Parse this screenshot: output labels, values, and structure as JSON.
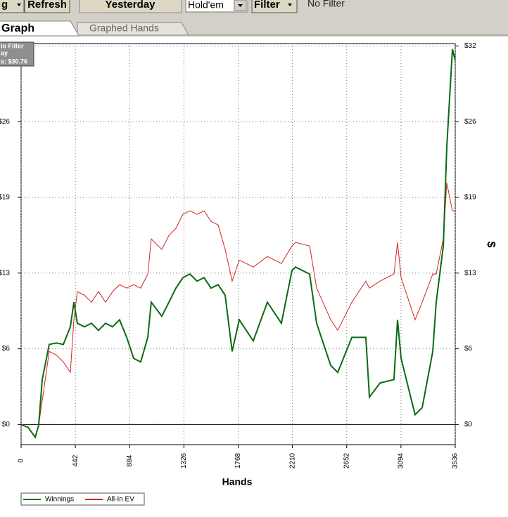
{
  "toolbar": {
    "items": [
      "g",
      "Refresh",
      "Yesterday",
      "Hold'em",
      "Filter",
      "No Filter"
    ]
  },
  "tabs": [
    "Graph",
    "Graphed Hands"
  ],
  "chart_data": {
    "type": "line",
    "annotations": [
      "lo Filter",
      "ay",
      "s: $30.76"
    ],
    "x_label": "Hands",
    "y_label": "$",
    "x": [
      0,
      57,
      115,
      143,
      172,
      229,
      287,
      344,
      401,
      430,
      458,
      516,
      573,
      630,
      688,
      745,
      802,
      860,
      917,
      974,
      1032,
      1060,
      1146,
      1204,
      1261,
      1318,
      1375,
      1433,
      1490,
      1547,
      1605,
      1662,
      1719,
      1777,
      1891,
      2006,
      2120,
      2206,
      2235,
      2350,
      2407,
      2522,
      2579,
      2694,
      2808,
      2837,
      2923,
      3037,
      3066,
      3095,
      3209,
      3267,
      3353,
      3381,
      3439,
      3467,
      3513,
      3536
    ],
    "series": [
      {
        "name": "Winnings",
        "color": "#0b6a12",
        "values": [
          0,
          -0.24,
          -1.07,
          -0.06,
          3.8,
          6.77,
          6.89,
          6.77,
          8.26,
          10.34,
          8.56,
          8.26,
          8.56,
          7.96,
          8.56,
          8.26,
          8.85,
          7.37,
          5.59,
          5.29,
          7.37,
          10.34,
          9.15,
          10.34,
          11.53,
          12.42,
          12.72,
          12.12,
          12.42,
          11.53,
          11.82,
          10.93,
          6.18,
          8.85,
          7.07,
          10.34,
          8.56,
          13.01,
          13.31,
          12.72,
          8.56,
          4.99,
          4.4,
          7.37,
          7.37,
          2.32,
          3.51,
          3.8,
          8.85,
          5.59,
          0.83,
          1.43,
          6.18,
          10.34,
          15.09,
          23.41,
          31.73,
          30.76
        ]
      },
      {
        "name": "All-In EV",
        "color": "#d42020",
        "values": [
          0,
          -0.24,
          -1.07,
          -0.06,
          2.02,
          6.18,
          5.88,
          5.29,
          4.4,
          8.85,
          11.23,
          10.93,
          10.34,
          11.23,
          10.34,
          11.23,
          11.82,
          11.53,
          11.82,
          11.53,
          12.72,
          15.69,
          14.8,
          15.98,
          16.58,
          17.77,
          18.06,
          17.77,
          18.06,
          17.17,
          16.87,
          14.8,
          12.12,
          13.9,
          13.31,
          14.2,
          13.61,
          15.09,
          15.39,
          15.09,
          11.53,
          8.85,
          7.96,
          10.34,
          12.12,
          11.53,
          12.12,
          12.72,
          15.39,
          12.42,
          8.85,
          10.34,
          12.72,
          12.72,
          15.69,
          20.44,
          18.06,
          18.06
        ]
      }
    ],
    "xlim": [
      0,
      3536
    ],
    "xticks": [
      0,
      442,
      884,
      1326,
      1768,
      2210,
      2652,
      3094,
      3536
    ],
    "ylim": [
      -1.7,
      32.2
    ],
    "yticks": [
      {
        "value": 0,
        "label": "$0"
      },
      {
        "value": 6.4,
        "label": "$6"
      },
      {
        "value": 12.8,
        "label": "$13"
      },
      {
        "value": 19.2,
        "label": "$19"
      },
      {
        "value": 25.6,
        "label": "$26"
      },
      {
        "value": 32,
        "label": "$32"
      }
    ],
    "grid": true
  }
}
